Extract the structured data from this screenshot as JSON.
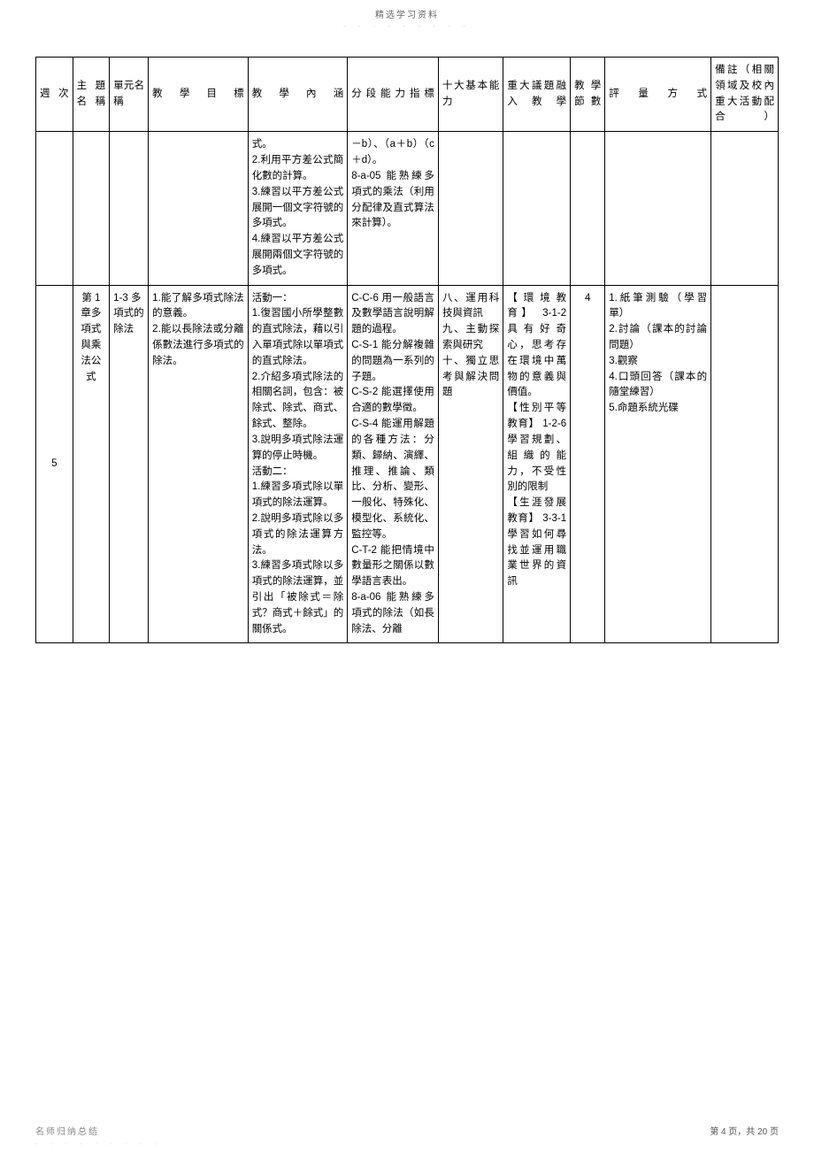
{
  "header": {
    "label": "精选学习资料",
    "sub": "- - - - - - - - -"
  },
  "table": {
    "headers": {
      "week": "週次",
      "topic": "主題名稱",
      "unit": "單元名稱",
      "goal": "教學目標",
      "content": "教學內涵",
      "indicator": "分段能力指標",
      "ability": "十大基本能力",
      "issue": "重大議題融入教學",
      "period": "教學節數",
      "assess": "評量方式",
      "note": "備註（相關領域及校內重大活動配合）"
    },
    "row1": {
      "content": "式。\n2.利用平方差公式簡化數的計算。\n3.練習以平方差公式展開一個文字符號的多項式。\n4.練習以平方差公式展開兩個文字符號的多項式。",
      "indicator": "－b）、（a＋b）（c ＋d）。\n8-a-05 能熟練多項式的乘法（利用分配律及直式算法來計算）。"
    },
    "row2": {
      "week": "5",
      "topic": "第 1 章多項式與乘法公式",
      "unit": "1-3 多項式的除法",
      "goal": "1.能了解多項式除法的意義。\n2.能以長除法或分離係數法進行多項式的除法。",
      "content": "活動一：\n1.復習國小所學整數的直式除法，藉以引入單項式除以單項式的直式除法。\n2.介紹多項式除法的相關名詞，包含：被除式、除式、商式、餘式、整除。\n3.說明多項式除法運算的停止時機。\n活動二：\n1.練習多項式除以單項式的除法運算。\n2.說明多項式除以多項式的除法運算方法。\n3.練習多項式除以多項式的除法運算，並引出「被除式＝除式？商式＋餘式」的關係式。",
      "indicator": "C-C-6 用一般語言及數學語言說明解題的過程。\nC-S-1 能分解複雜的問題為一系列的子題。\nC-S-2 能選擇使用合適的數學徵。\nC-S-4 能運用解題的各種方法：分類、歸納、演繹、推理、推論、類比、分析、變形、一般化、特殊化、模型化、系統化、監控等。\nC-T-2 能把情境中數量形之關係以數學語言表出。\n8-a-06 能熟練多項式的除法（如長除法、分離",
      "ability": "八、運用科技與資訊\n九、主動探索與研究\n十、獨立思考與解決問題",
      "issue": "【環境教育】 3-1-2 具有好奇心，思考存在環境中萬物的意義與價值。\n【性別平等教育】 1-2-6 學習規劃、組織的能力，不受性別的限制\n【生涯發展教育】 3-3-1 學習如何尋找並運用職業世界的資訊",
      "period": "4",
      "assess": "1.紙筆測驗（學習單）\n2.討論（課本的討論問題）\n3.觀察\n4.口頭回答（課本的隨堂練習）\n5.命題系統光碟"
    }
  },
  "footer": {
    "left": "名师归纳总结",
    "right": "第 4 页，共 20 页",
    "sub": "- - - - - - - - -"
  }
}
